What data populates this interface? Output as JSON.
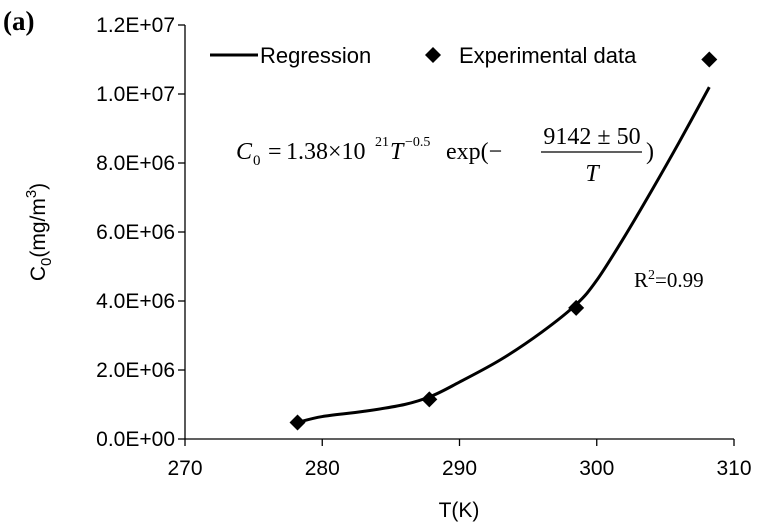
{
  "chart_data": {
    "type": "scatter",
    "panel_label": "(a)",
    "xlabel": "T(K)",
    "ylabel_parts": [
      "C",
      "0",
      "(mg/m",
      "3",
      ")"
    ],
    "xlim": [
      270,
      310
    ],
    "ylim": [
      0,
      12000000
    ],
    "x_ticks": [
      270,
      280,
      290,
      300,
      310
    ],
    "y_ticks": [
      0,
      2000000,
      4000000,
      6000000,
      8000000,
      10000000,
      12000000
    ],
    "x_tick_labels": [
      "270",
      "280",
      "290",
      "300",
      "310"
    ],
    "y_tick_labels": [
      "0.0E+00",
      "2.0E+06",
      "4.0E+06",
      "6.0E+06",
      "8.0E+06",
      "1.0E+07",
      "1.2E+07"
    ],
    "grid": false,
    "legend_position": "top",
    "series": [
      {
        "name": "Experimental data",
        "kind": "scatter",
        "marker": "diamond",
        "color": "#000000",
        "x": [
          278.2,
          287.8,
          298.5,
          308.2
        ],
        "y": [
          480000,
          1150000,
          3800000,
          11000000
        ]
      },
      {
        "name": "Regression",
        "kind": "line",
        "color": "#000000",
        "x": [
          278.2,
          280,
          283,
          286,
          288,
          290,
          293,
          296,
          298.5,
          300,
          302,
          304,
          306,
          308.2
        ],
        "y": [
          480000,
          650000,
          800000,
          1000000,
          1250000,
          1650000,
          2300000,
          3100000,
          3900000,
          4600000,
          5850000,
          7200000,
          8600000,
          10200000
        ]
      }
    ],
    "annotations": {
      "equation": {
        "lhs_var": "C",
        "lhs_sub": "0",
        "eq": "=",
        "coef": "1.38×10",
        "coef_exp": "21",
        "var_T": "T",
        "t_exp": "−0.5",
        "fn": "exp(−",
        "numerator": "9142 ± 50",
        "denominator": "T",
        "close": ")"
      },
      "r2_label": "R",
      "r2_exp": "2",
      "r2_value": "=0.99"
    }
  }
}
